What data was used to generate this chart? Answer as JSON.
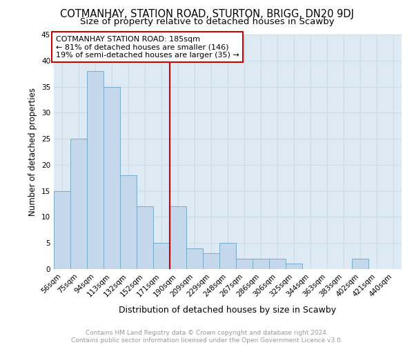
{
  "title": "COTMANHAY, STATION ROAD, STURTON, BRIGG, DN20 9DJ",
  "subtitle": "Size of property relative to detached houses in Scawby",
  "xlabel": "Distribution of detached houses by size in Scawby",
  "ylabel": "Number of detached properties",
  "categories": [
    "56sqm",
    "75sqm",
    "94sqm",
    "113sqm",
    "132sqm",
    "152sqm",
    "171sqm",
    "190sqm",
    "209sqm",
    "229sqm",
    "248sqm",
    "267sqm",
    "286sqm",
    "306sqm",
    "325sqm",
    "344sqm",
    "363sqm",
    "383sqm",
    "402sqm",
    "421sqm",
    "440sqm"
  ],
  "values": [
    15,
    25,
    38,
    35,
    18,
    12,
    5,
    12,
    4,
    3,
    5,
    2,
    2,
    2,
    1,
    0,
    0,
    0,
    2,
    0,
    0
  ],
  "bar_color": "#c5d8eb",
  "bar_edge_color": "#7aaac8",
  "reference_line_color": "#cc0000",
  "annotation_text": "COTMANHAY STATION ROAD: 185sqm\n← 81% of detached houses are smaller (146)\n19% of semi-detached houses are larger (35) →",
  "annotation_box_color": "#ffffff",
  "annotation_box_edge_color": "#cc0000",
  "grid_color": "#ccdde8",
  "plot_background": "#ddeaf4",
  "ylim": [
    0,
    45
  ],
  "yticks": [
    0,
    5,
    10,
    15,
    20,
    25,
    30,
    35,
    40,
    45
  ],
  "title_fontsize": 10.5,
  "subtitle_fontsize": 9.5,
  "xlabel_fontsize": 9,
  "ylabel_fontsize": 8.5,
  "tick_fontsize": 7.5,
  "annotation_fontsize": 8,
  "footer_fontsize": 6.5,
  "footer_text": "Contains HM Land Registry data © Crown copyright and database right 2024.\nContains public sector information licensed under the Open Government Licence v3.0."
}
